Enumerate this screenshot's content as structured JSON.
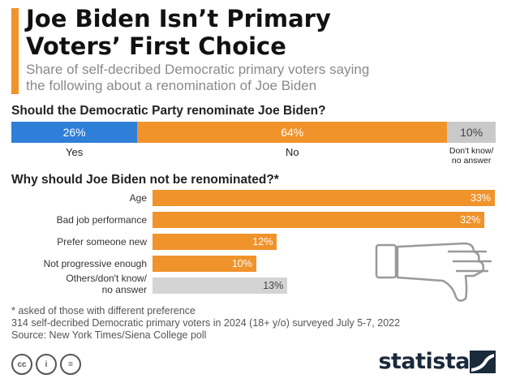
{
  "header": {
    "title_line1": "Joe Biden Isn’t Primary",
    "title_line2": "Voters’ First Choice",
    "subtitle_line1": "Share of self-decribed Democratic primary voters saying",
    "subtitle_line2": "the following about a renomination of Joe Biden"
  },
  "chart_data": [
    {
      "type": "bar",
      "stacked": true,
      "title": "Should the Democratic Party renominate Joe Biden?",
      "categories": [
        "Yes",
        "No",
        "Don't know/ no answer"
      ],
      "values": [
        26,
        64,
        10
      ],
      "value_labels": [
        "26%",
        "64%",
        "10%"
      ],
      "colors": [
        "#2f7fd8",
        "#f0932b",
        "#c9c9c9"
      ],
      "category_labels": {
        "yes": "Yes",
        "no": "No",
        "dk_line1": "Don't know/",
        "dk_line2": "no answer"
      },
      "unit": "%"
    },
    {
      "type": "bar",
      "orientation": "horizontal",
      "title": "Why should Joe Biden not be renominated?*",
      "categories": [
        "Age",
        "Bad job performance",
        "Prefer someone new",
        "Not progressive enough",
        "Others/don't know/ no answer"
      ],
      "values": [
        33,
        32,
        12,
        10,
        13
      ],
      "value_labels": [
        "33%",
        "32%",
        "12%",
        "10%",
        "13%"
      ],
      "colors": [
        "#f0932b",
        "#f0932b",
        "#f0932b",
        "#f0932b",
        "#d4d4d4"
      ],
      "last_label_line1": "Others/don't know/",
      "last_label_line2": "no answer",
      "xlim": [
        0,
        33
      ],
      "unit": "%"
    }
  ],
  "notes": {
    "footnote": "* asked of those with different preference",
    "sample": "314 self-decribed Democratic primary voters in 2024 (18+ y/o) surveyed July 5-7, 2022",
    "source": "Source: New York Times/Siena College poll"
  },
  "footer": {
    "logo": "statista",
    "license_icons": [
      "cc",
      "i",
      "="
    ]
  }
}
